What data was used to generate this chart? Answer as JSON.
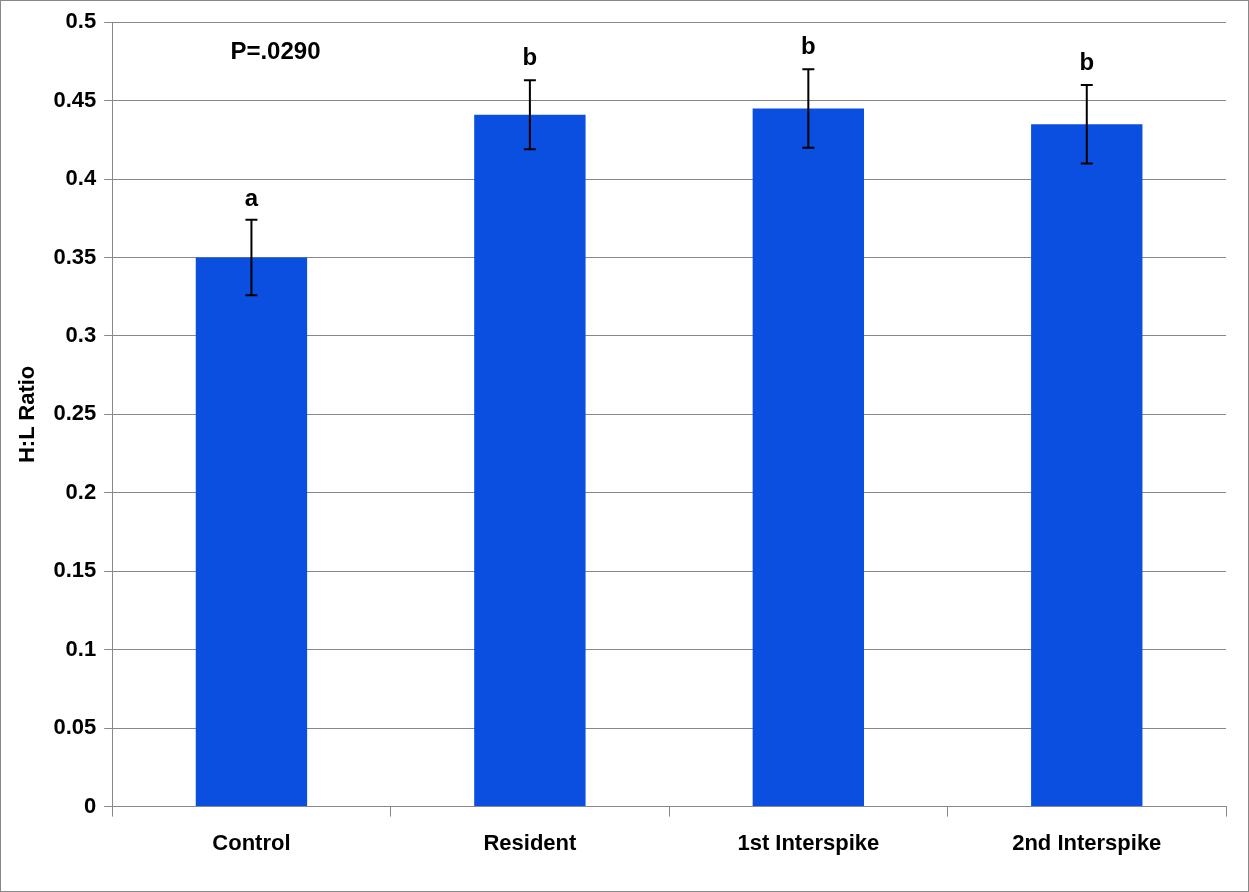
{
  "chart_data": {
    "type": "bar",
    "ylabel": "H:L Ratio",
    "categories": [
      "Control",
      "Resident",
      "1st Interspike",
      "2nd Interspike"
    ],
    "values": [
      0.35,
      0.441,
      0.445,
      0.435
    ],
    "errors": [
      0.024,
      0.022,
      0.025,
      0.025
    ],
    "color": "#0a4fe0",
    "ylim": [
      0,
      0.5
    ],
    "yticks": [
      0,
      0.05,
      0.1,
      0.15,
      0.2,
      0.25,
      0.3,
      0.35,
      0.4,
      0.45,
      0.5
    ],
    "grid": "y",
    "legend": false,
    "annotations": [
      "P=.0290",
      {
        "text": "a",
        "x": "Control",
        "y": 0.373
      },
      {
        "text": "b",
        "x": "Resident",
        "y": 0.463
      },
      {
        "text": "b",
        "x": "1st Interspike",
        "y": 0.47
      },
      {
        "text": "b",
        "x": "2nd Interspike",
        "y": 0.46
      }
    ]
  }
}
